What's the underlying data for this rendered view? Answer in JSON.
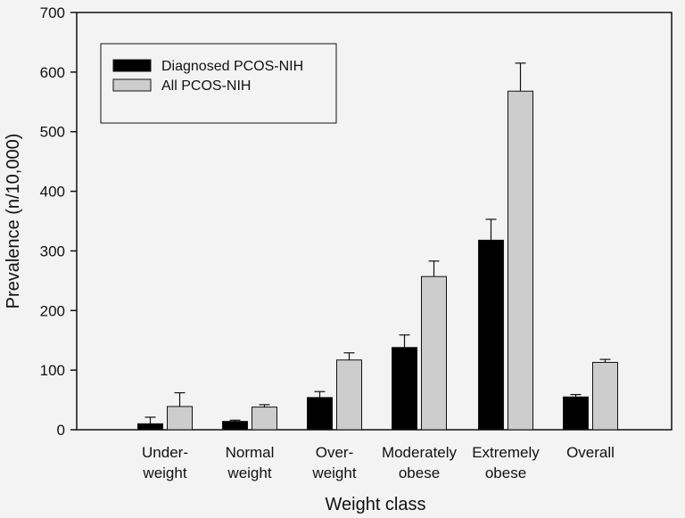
{
  "chart_data": {
    "type": "bar",
    "title": "",
    "xlabel": "Weight class",
    "ylabel": "Prevalence (n/10,000)",
    "ylim": [
      0,
      700
    ],
    "yticks": [
      0,
      100,
      200,
      300,
      400,
      500,
      600,
      700
    ],
    "grid": false,
    "legend_position": "top-left",
    "categories": [
      [
        "Under-",
        "weight"
      ],
      [
        "Normal",
        "weight"
      ],
      [
        "Over-",
        "weight"
      ],
      [
        "Moderately",
        "obese"
      ],
      [
        "Extremely",
        "obese"
      ],
      [
        "Overall"
      ]
    ],
    "series": [
      {
        "name": "Diagnosed PCOS-NIH",
        "color": "#000000",
        "values": [
          10,
          14,
          54,
          138,
          318,
          55
        ],
        "error_upper": [
          21,
          16,
          64,
          159,
          353,
          59
        ]
      },
      {
        "name": "All PCOS-NIH",
        "color": "#cdcdcd",
        "values": [
          39,
          38,
          117,
          257,
          568,
          113
        ],
        "error_upper": [
          62,
          42,
          129,
          283,
          615,
          118
        ]
      }
    ]
  }
}
